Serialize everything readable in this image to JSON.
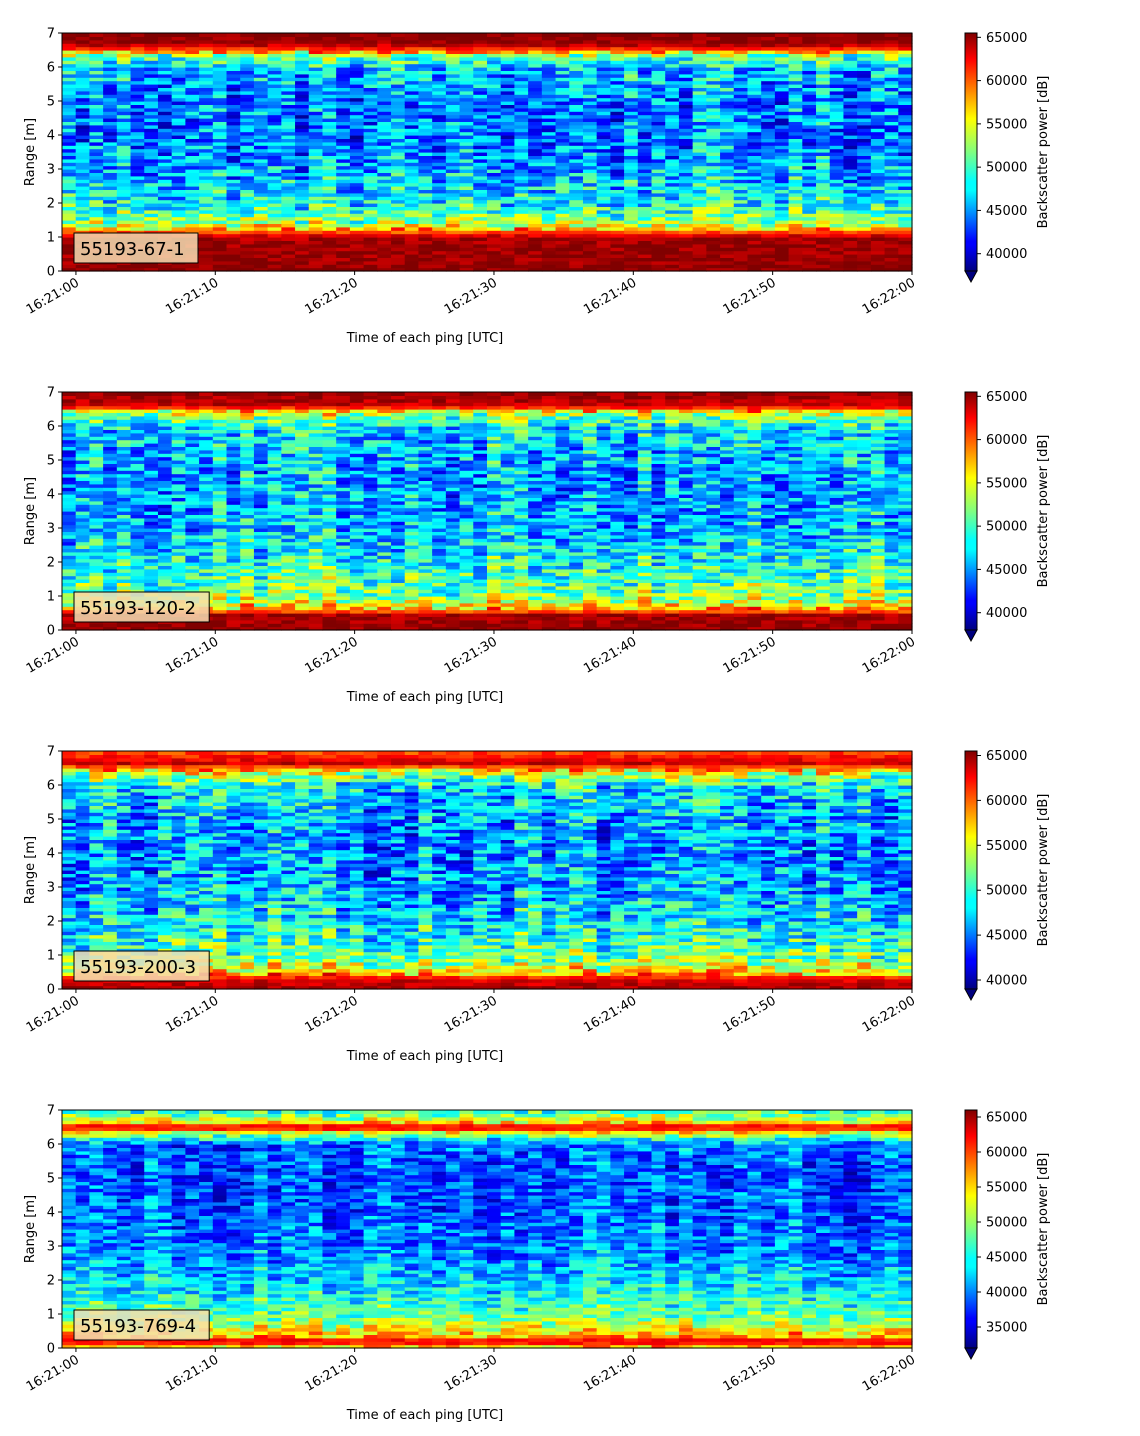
{
  "chart_data": [
    {
      "type": "heatmap",
      "label": "55193-67-1",
      "xlabel": "Time of each ping [UTC]",
      "ylabel": "Range [m]",
      "x_range": [
        "16:20:59",
        "16:22:00"
      ],
      "ylim": [
        0,
        7
      ],
      "x_ticks": [
        "16:21:00",
        "16:21:10",
        "16:21:20",
        "16:21:30",
        "16:21:40",
        "16:21:50",
        "16:22:00"
      ],
      "y_ticks": [
        0,
        1,
        2,
        3,
        4,
        5,
        6,
        7
      ],
      "colorbar": {
        "label": "Backscatter power [dB]",
        "range": [
          38000,
          65500
        ],
        "ticks": [
          40000,
          45000,
          50000,
          55000,
          60000,
          65000
        ]
      },
      "profile": [
        {
          "range_m": 0.0,
          "value": 65500
        },
        {
          "range_m": 0.25,
          "value": 65000
        },
        {
          "range_m": 1.0,
          "value": 64500
        },
        {
          "range_m": 1.15,
          "value": 60000
        },
        {
          "range_m": 1.4,
          "value": 53000
        },
        {
          "range_m": 2.0,
          "value": 48500
        },
        {
          "range_m": 3.0,
          "value": 46000
        },
        {
          "range_m": 4.0,
          "value": 44500
        },
        {
          "range_m": 5.0,
          "value": 45000
        },
        {
          "range_m": 6.0,
          "value": 47000
        },
        {
          "range_m": 6.35,
          "value": 52000
        },
        {
          "range_m": 6.55,
          "value": 61000
        },
        {
          "range_m": 6.7,
          "value": 65000
        },
        {
          "range_m": 7.0,
          "value": 65500
        }
      ]
    },
    {
      "type": "heatmap",
      "label": "55193-120-2",
      "xlabel": "Time of each ping [UTC]",
      "ylabel": "Range [m]",
      "x_range": [
        "16:20:59",
        "16:22:00"
      ],
      "ylim": [
        0,
        7
      ],
      "x_ticks": [
        "16:21:00",
        "16:21:10",
        "16:21:20",
        "16:21:30",
        "16:21:40",
        "16:21:50",
        "16:22:00"
      ],
      "y_ticks": [
        0,
        1,
        2,
        3,
        4,
        5,
        6,
        7
      ],
      "colorbar": {
        "label": "Backscatter power [dB]",
        "range": [
          38000,
          65500
        ],
        "ticks": [
          40000,
          45000,
          50000,
          55000,
          60000,
          65000
        ]
      },
      "profile": [
        {
          "range_m": 0.0,
          "value": 65000
        },
        {
          "range_m": 0.45,
          "value": 64500
        },
        {
          "range_m": 0.6,
          "value": 58000
        },
        {
          "range_m": 1.0,
          "value": 52000
        },
        {
          "range_m": 2.0,
          "value": 49000
        },
        {
          "range_m": 3.0,
          "value": 46500
        },
        {
          "range_m": 4.0,
          "value": 46000
        },
        {
          "range_m": 5.0,
          "value": 46500
        },
        {
          "range_m": 6.0,
          "value": 48000
        },
        {
          "range_m": 6.4,
          "value": 54000
        },
        {
          "range_m": 6.6,
          "value": 63500
        },
        {
          "range_m": 7.0,
          "value": 65000
        }
      ]
    },
    {
      "type": "heatmap",
      "label": "55193-200-3",
      "xlabel": "Time of each ping [UTC]",
      "ylabel": "Range [m]",
      "x_range": [
        "16:20:59",
        "16:22:00"
      ],
      "ylim": [
        0,
        7
      ],
      "x_ticks": [
        "16:21:00",
        "16:21:10",
        "16:21:20",
        "16:21:30",
        "16:21:40",
        "16:21:50",
        "16:22:00"
      ],
      "y_ticks": [
        0,
        1,
        2,
        3,
        4,
        5,
        6,
        7
      ],
      "colorbar": {
        "label": "Backscatter power [dB]",
        "range": [
          39000,
          65500
        ],
        "ticks": [
          40000,
          45000,
          50000,
          55000,
          60000,
          65000
        ]
      },
      "profile": [
        {
          "range_m": 0.0,
          "value": 64500
        },
        {
          "range_m": 0.3,
          "value": 63000
        },
        {
          "range_m": 0.5,
          "value": 56000
        },
        {
          "range_m": 1.0,
          "value": 51500
        },
        {
          "range_m": 2.0,
          "value": 48000
        },
        {
          "range_m": 3.0,
          "value": 46500
        },
        {
          "range_m": 4.0,
          "value": 46000
        },
        {
          "range_m": 5.0,
          "value": 46500
        },
        {
          "range_m": 6.0,
          "value": 48500
        },
        {
          "range_m": 6.4,
          "value": 55000
        },
        {
          "range_m": 6.65,
          "value": 63500
        },
        {
          "range_m": 7.0,
          "value": 60000
        }
      ]
    },
    {
      "type": "heatmap",
      "label": "55193-769-4",
      "xlabel": "Time of each ping [UTC]",
      "ylabel": "Range [m]",
      "x_range": [
        "16:20:59",
        "16:22:00"
      ],
      "ylim": [
        0,
        7
      ],
      "x_ticks": [
        "16:21:00",
        "16:21:10",
        "16:21:20",
        "16:21:30",
        "16:21:40",
        "16:21:50",
        "16:22:00"
      ],
      "y_ticks": [
        0,
        1,
        2,
        3,
        4,
        5,
        6,
        7
      ],
      "colorbar": {
        "label": "Backscatter power [dB]",
        "range": [
          32000,
          66000
        ],
        "ticks": [
          35000,
          40000,
          45000,
          50000,
          55000,
          60000,
          65000
        ]
      },
      "profile": [
        {
          "range_m": 0.0,
          "value": 52000
        },
        {
          "range_m": 0.2,
          "value": 64000
        },
        {
          "range_m": 0.35,
          "value": 56000
        },
        {
          "range_m": 1.0,
          "value": 48000
        },
        {
          "range_m": 2.0,
          "value": 43000
        },
        {
          "range_m": 3.0,
          "value": 40500
        },
        {
          "range_m": 4.0,
          "value": 39500
        },
        {
          "range_m": 5.0,
          "value": 39000
        },
        {
          "range_m": 6.0,
          "value": 40000
        },
        {
          "range_m": 6.3,
          "value": 50000
        },
        {
          "range_m": 6.5,
          "value": 64000
        },
        {
          "range_m": 6.7,
          "value": 52000
        },
        {
          "range_m": 7.0,
          "value": 46000
        }
      ]
    }
  ]
}
